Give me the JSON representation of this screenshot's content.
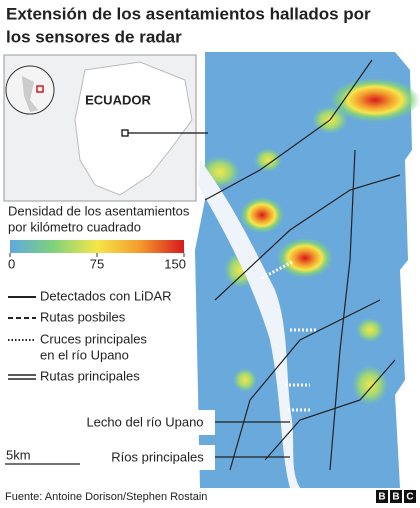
{
  "header": {
    "title": [
      "Extensión de los asentamientos hallados por",
      "los sensores de radar"
    ]
  },
  "inset": {
    "label": "ECUADOR"
  },
  "legend": {
    "title": [
      "Densidad de los asentamientos",
      "por kilómetro cuadrado"
    ],
    "range": [
      0,
      150
    ],
    "ticks": [
      0,
      75,
      150
    ],
    "colors": [
      "#5fa8e0",
      "#7fd27a",
      "#f5e64a",
      "#f39a2d",
      "#d7191c"
    ],
    "items": [
      {
        "label": [
          "Detectados con LiDAR"
        ],
        "style": "solid"
      },
      {
        "label": [
          "Rutas posbiles"
        ],
        "style": "dashed"
      },
      {
        "label": [
          "Cruces principales",
          "en el río Upano"
        ],
        "style": "dotted"
      },
      {
        "label": [
          "Rutas principales"
        ],
        "style": "double"
      }
    ]
  },
  "callouts": [
    "Lecho del río Upano",
    "Ríos principales"
  ],
  "scale": "5km",
  "footer": {
    "source": "Fuente: Antoine Dorison/Stephen Rostain",
    "logo": [
      "B",
      "B",
      "C"
    ]
  }
}
